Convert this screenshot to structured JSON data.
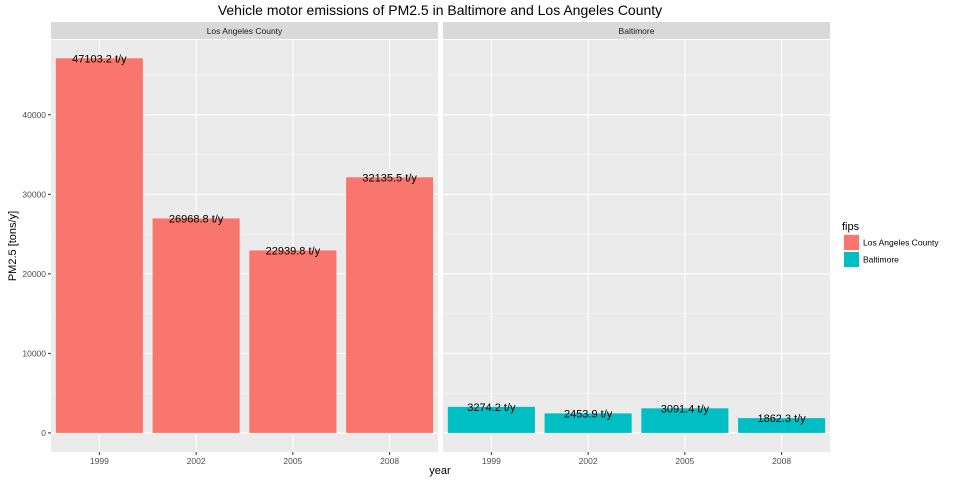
{
  "chart_data": {
    "type": "bar",
    "title": "Vehicle motor emissions of PM2.5 in Baltimore and Los Angeles County",
    "xlabel": "year",
    "ylabel": "PM2.5 [tons/y]",
    "categories": [
      "1999",
      "2002",
      "2005",
      "2008"
    ],
    "ylim": [
      -2400,
      49400
    ],
    "yticks": [
      0,
      10000,
      20000,
      30000,
      40000
    ],
    "grid": true,
    "legend": {
      "title": "fips",
      "position": "right",
      "entries": [
        {
          "name": "Los Angeles County",
          "color": "#F8766D"
        },
        {
          "name": "Baltimore",
          "color": "#00BFC4"
        }
      ]
    },
    "panels": [
      {
        "strip": "Los Angeles County",
        "color": "#F8766D",
        "values": [
          47103.2,
          26968.8,
          22939.8,
          32135.5
        ],
        "labels": [
          "47103.2 t/y",
          "26968.8 t/y",
          "22939.8 t/y",
          "32135.5 t/y"
        ]
      },
      {
        "strip": "Baltimore",
        "color": "#00BFC4",
        "values": [
          3274.2,
          2453.9,
          3091.4,
          1862.3
        ],
        "labels": [
          "3274.2 t/y",
          "2453.9 t/y",
          "3091.4 t/y",
          "1862.3 t/y"
        ]
      }
    ]
  }
}
